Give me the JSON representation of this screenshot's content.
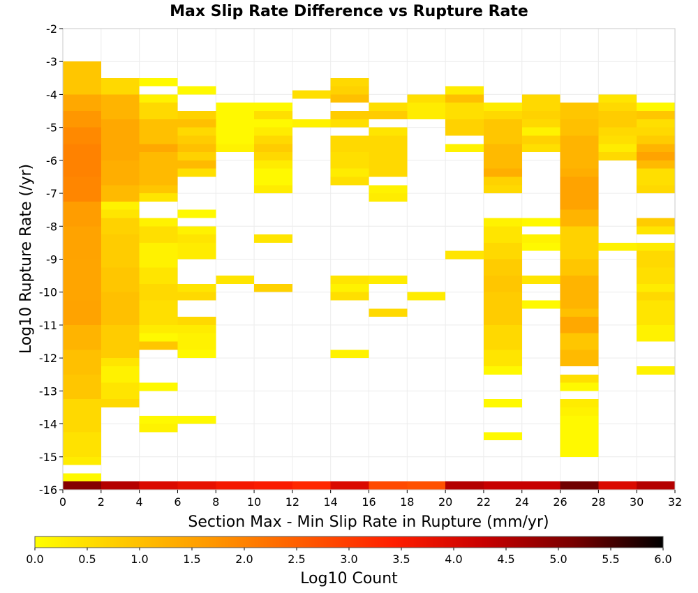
{
  "chart_data": {
    "type": "heatmap",
    "title": "Max Slip Rate Difference vs Rupture Rate",
    "xlabel": "Section Max - Min Slip Rate in Rupture (mm/yr)",
    "ylabel": "Log10 Rupture Rate (/yr)",
    "xlim": [
      0,
      32
    ],
    "ylim": [
      -16,
      -2
    ],
    "x_ticks": [
      "0",
      "2",
      "4",
      "6",
      "8",
      "10",
      "12",
      "14",
      "16",
      "18",
      "20",
      "22",
      "24",
      "26",
      "28",
      "30",
      "32"
    ],
    "y_ticks": [
      "-2",
      "-3",
      "-4",
      "-5",
      "-6",
      "-7",
      "-8",
      "-9",
      "-10",
      "-11",
      "-12",
      "-13",
      "-14",
      "-15",
      "-16"
    ],
    "cell_width": 2,
    "cell_height": 0.25,
    "grid": true,
    "colorbar": {
      "label": "Log10 Count",
      "min": 0,
      "max": 6,
      "ticks": [
        "0.0",
        "0.5",
        "1.0",
        "1.5",
        "2.0",
        "2.5",
        "3.0",
        "3.5",
        "4.0",
        "4.5",
        "5.0",
        "5.5",
        "6.0"
      ],
      "colors": [
        "#ffff00",
        "#ffc800",
        "#ff9600",
        "#ff5a00",
        "#ff1e00",
        "#c80000",
        "#780000",
        "#000000"
      ],
      "placement": "bottom"
    },
    "columns": [
      {
        "x": 0,
        "cells": [
          [
            -3.0,
            -4.0,
            0.9
          ],
          [
            -4.0,
            -4.5,
            1.4
          ],
          [
            -4.5,
            -5.0,
            1.7
          ],
          [
            -5.0,
            -5.5,
            1.9
          ],
          [
            -5.5,
            -6.5,
            2.0
          ],
          [
            -6.5,
            -7.25,
            1.95
          ],
          [
            -7.25,
            -8.0,
            1.6
          ],
          [
            -8.0,
            -9.0,
            1.5
          ],
          [
            -9.0,
            -10.25,
            1.45
          ],
          [
            -10.25,
            -11.0,
            1.5
          ],
          [
            -11.0,
            -11.75,
            1.2
          ],
          [
            -11.75,
            -12.5,
            1.0
          ],
          [
            -12.5,
            -13.25,
            0.9
          ],
          [
            -13.25,
            -14.25,
            0.6
          ],
          [
            -14.25,
            -15.0,
            0.45
          ],
          [
            -15.0,
            -15.25,
            0.3
          ],
          [
            -15.5,
            -15.75,
            0.1
          ],
          [
            -15.75,
            -16.0,
            5.0
          ]
        ]
      },
      {
        "x": 2,
        "cells": [
          [
            -3.5,
            -4.0,
            0.6
          ],
          [
            -4.0,
            -4.75,
            1.2
          ],
          [
            -4.75,
            -6.0,
            1.4
          ],
          [
            -6.0,
            -6.75,
            1.3
          ],
          [
            -6.75,
            -7.25,
            1.1
          ],
          [
            -7.25,
            -7.5,
            0.2
          ],
          [
            -7.5,
            -7.75,
            0.4
          ],
          [
            -7.75,
            -8.25,
            0.7
          ],
          [
            -8.25,
            -9.25,
            0.8
          ],
          [
            -9.25,
            -10.0,
            0.9
          ],
          [
            -10.0,
            -11.0,
            1.0
          ],
          [
            -11.0,
            -12.0,
            0.8
          ],
          [
            -12.0,
            -12.25,
            0.4
          ],
          [
            -12.25,
            -12.75,
            0.2
          ],
          [
            -12.75,
            -13.25,
            0.4
          ],
          [
            -13.25,
            -13.5,
            0.6
          ],
          [
            -15.75,
            -16.0,
            4.5
          ]
        ]
      },
      {
        "x": 4,
        "cells": [
          [
            -3.5,
            -3.75,
            0.1
          ],
          [
            -4.0,
            -4.25,
            0.2
          ],
          [
            -4.25,
            -4.75,
            0.6
          ],
          [
            -4.75,
            -5.5,
            1.0
          ],
          [
            -5.5,
            -5.75,
            1.4
          ],
          [
            -5.75,
            -6.75,
            1.1
          ],
          [
            -6.75,
            -7.0,
            0.9
          ],
          [
            -7.0,
            -7.25,
            0.4
          ],
          [
            -7.75,
            -8.0,
            0.2
          ],
          [
            -8.0,
            -8.5,
            0.5
          ],
          [
            -8.5,
            -9.25,
            0.2
          ],
          [
            -9.25,
            -9.75,
            0.4
          ],
          [
            -9.75,
            -10.25,
            0.6
          ],
          [
            -10.25,
            -11.0,
            0.5
          ],
          [
            -11.0,
            -11.25,
            0.3
          ],
          [
            -11.25,
            -11.5,
            0.1
          ],
          [
            -11.5,
            -11.75,
            0.9
          ],
          [
            -12.75,
            -13.0,
            0.1
          ],
          [
            -13.75,
            -14.0,
            0.1
          ],
          [
            -14.0,
            -14.25,
            0.2
          ],
          [
            -15.75,
            -16.0,
            4.0
          ]
        ]
      },
      {
        "x": 6,
        "cells": [
          [
            -3.75,
            -4.0,
            0.1
          ],
          [
            -4.5,
            -4.75,
            0.7
          ],
          [
            -4.75,
            -5.0,
            1.0
          ],
          [
            -5.0,
            -5.25,
            0.6
          ],
          [
            -5.25,
            -5.5,
            0.8
          ],
          [
            -5.5,
            -5.75,
            1.0
          ],
          [
            -5.75,
            -6.0,
            0.7
          ],
          [
            -6.0,
            -6.25,
            1.1
          ],
          [
            -6.25,
            -6.5,
            0.5
          ],
          [
            -7.5,
            -7.75,
            0.1
          ],
          [
            -8.0,
            -8.25,
            0.2
          ],
          [
            -8.25,
            -8.5,
            0.4
          ],
          [
            -8.5,
            -9.0,
            0.3
          ],
          [
            -9.75,
            -10.0,
            0.4
          ],
          [
            -10.0,
            -10.25,
            0.6
          ],
          [
            -10.75,
            -11.0,
            0.6
          ],
          [
            -11.0,
            -11.25,
            0.3
          ],
          [
            -11.25,
            -11.75,
            0.2
          ],
          [
            -11.75,
            -12.0,
            0.1
          ],
          [
            -13.75,
            -14.0,
            0.1
          ],
          [
            -15.75,
            -16.0,
            3.8
          ]
        ]
      },
      {
        "x": 8,
        "cells": [
          [
            -4.25,
            -5.5,
            0.1
          ],
          [
            -5.5,
            -5.75,
            0.2
          ],
          [
            -9.5,
            -9.75,
            0.4
          ],
          [
            -15.75,
            -16.0,
            3.6
          ]
        ]
      },
      {
        "x": 10,
        "cells": [
          [
            -4.25,
            -4.5,
            0.1
          ],
          [
            -4.5,
            -4.75,
            0.5
          ],
          [
            -4.75,
            -5.0,
            0.1
          ],
          [
            -5.0,
            -5.25,
            0.3
          ],
          [
            -5.25,
            -5.5,
            0.6
          ],
          [
            -5.5,
            -5.75,
            0.8
          ],
          [
            -5.75,
            -6.0,
            0.6
          ],
          [
            -6.0,
            -6.25,
            0.3
          ],
          [
            -6.25,
            -6.75,
            0.1
          ],
          [
            -6.75,
            -7.0,
            0.3
          ],
          [
            -8.25,
            -8.5,
            0.4
          ],
          [
            -9.75,
            -10.0,
            0.7
          ],
          [
            -15.75,
            -16.0,
            3.5
          ]
        ]
      },
      {
        "x": 12,
        "cells": [
          [
            -4.75,
            -5.0,
            0.2
          ],
          [
            -3.875,
            -4.125,
            0.5
          ],
          [
            -15.75,
            -16.0,
            3.3
          ]
        ]
      },
      {
        "x": 14,
        "cells": [
          [
            -3.5,
            -3.75,
            0.6
          ],
          [
            -3.75,
            -4.0,
            0.7
          ],
          [
            -4.0,
            -4.25,
            1.0
          ],
          [
            -4.5,
            -4.75,
            0.8
          ],
          [
            -4.75,
            -5.0,
            0.5
          ],
          [
            -5.25,
            -5.75,
            0.6
          ],
          [
            -5.75,
            -6.25,
            0.5
          ],
          [
            -6.25,
            -6.5,
            0.3
          ],
          [
            -6.5,
            -6.75,
            0.5
          ],
          [
            -9.5,
            -9.75,
            0.4
          ],
          [
            -9.75,
            -10.0,
            0.2
          ],
          [
            -10.0,
            -10.25,
            0.5
          ],
          [
            -11.75,
            -12.0,
            0.2
          ],
          [
            -15.75,
            -16.0,
            4.0
          ]
        ]
      },
      {
        "x": 16,
        "cells": [
          [
            -4.25,
            -4.5,
            0.5
          ],
          [
            -4.5,
            -4.75,
            0.8
          ],
          [
            -5.0,
            -5.25,
            0.4
          ],
          [
            -5.25,
            -6.5,
            0.6
          ],
          [
            -6.75,
            -7.0,
            0.2
          ],
          [
            -7.0,
            -7.25,
            0.3
          ],
          [
            -9.5,
            -9.75,
            0.3
          ],
          [
            -10.5,
            -10.75,
            0.6
          ],
          [
            -15.75,
            -16.0,
            2.8
          ]
        ]
      },
      {
        "x": 18,
        "cells": [
          [
            -4.0,
            -4.25,
            0.5
          ],
          [
            -4.25,
            -4.75,
            0.3
          ],
          [
            -10.0,
            -10.25,
            0.3
          ],
          [
            -15.75,
            -16.0,
            2.7
          ]
        ]
      },
      {
        "x": 20,
        "cells": [
          [
            -3.75,
            -4.0,
            0.3
          ],
          [
            -4.0,
            -4.25,
            1.0
          ],
          [
            -4.25,
            -4.75,
            0.5
          ],
          [
            -4.75,
            -5.25,
            0.7
          ],
          [
            -5.5,
            -5.75,
            0.2
          ],
          [
            -8.75,
            -9.0,
            0.4
          ],
          [
            -15.75,
            -16.0,
            4.5
          ]
        ]
      },
      {
        "x": 22,
        "cells": [
          [
            -4.25,
            -4.5,
            0.3
          ],
          [
            -4.5,
            -4.75,
            0.6
          ],
          [
            -4.75,
            -5.5,
            0.9
          ],
          [
            -5.5,
            -6.25,
            1.1
          ],
          [
            -6.25,
            -6.5,
            1.3
          ],
          [
            -6.5,
            -6.75,
            0.7
          ],
          [
            -6.75,
            -7.0,
            0.6
          ],
          [
            -7.75,
            -8.0,
            0.2
          ],
          [
            -8.0,
            -8.5,
            0.4
          ],
          [
            -8.5,
            -9.0,
            0.6
          ],
          [
            -9.0,
            -9.5,
            0.8
          ],
          [
            -9.5,
            -10.0,
            0.9
          ],
          [
            -10.0,
            -11.0,
            0.8
          ],
          [
            -11.0,
            -11.75,
            0.6
          ],
          [
            -11.75,
            -12.25,
            0.4
          ],
          [
            -12.25,
            -12.5,
            0.1
          ],
          [
            -13.25,
            -13.5,
            0.1
          ],
          [
            -14.25,
            -14.5,
            0.1
          ],
          [
            -15.75,
            -16.0,
            4.3
          ]
        ]
      },
      {
        "x": 24,
        "cells": [
          [
            -4.0,
            -4.5,
            0.6
          ],
          [
            -4.5,
            -4.75,
            0.7
          ],
          [
            -4.75,
            -5.0,
            0.6
          ],
          [
            -5.0,
            -5.25,
            0.2
          ],
          [
            -5.25,
            -5.5,
            0.7
          ],
          [
            -5.5,
            -5.75,
            0.5
          ],
          [
            -7.75,
            -8.0,
            0.1
          ],
          [
            -8.25,
            -8.5,
            0.2
          ],
          [
            -8.5,
            -8.75,
            0.1
          ],
          [
            -9.5,
            -9.75,
            0.4
          ],
          [
            -10.25,
            -10.5,
            0.1
          ],
          [
            -15.75,
            -16.0,
            4.3
          ]
        ]
      },
      {
        "x": 26,
        "cells": [
          [
            -4.25,
            -4.75,
            0.9
          ],
          [
            -4.75,
            -5.25,
            1.0
          ],
          [
            -5.25,
            -6.25,
            1.2
          ],
          [
            -6.25,
            -6.5,
            1.3
          ],
          [
            -6.5,
            -7.25,
            1.5
          ],
          [
            -7.25,
            -7.5,
            1.5
          ],
          [
            -7.5,
            -8.0,
            1.2
          ],
          [
            -8.0,
            -9.0,
            0.7
          ],
          [
            -9.0,
            -9.5,
            0.9
          ],
          [
            -9.5,
            -10.5,
            1.2
          ],
          [
            -10.5,
            -10.75,
            1.0
          ],
          [
            -10.75,
            -11.25,
            1.4
          ],
          [
            -11.25,
            -11.75,
            0.9
          ],
          [
            -11.75,
            -12.25,
            1.1
          ],
          [
            -12.5,
            -12.75,
            0.5
          ],
          [
            -12.75,
            -13.0,
            0.1
          ],
          [
            -13.25,
            -13.5,
            0.3
          ],
          [
            -13.5,
            -13.75,
            0.2
          ],
          [
            -13.75,
            -14.5,
            0.1
          ],
          [
            -14.5,
            -15.0,
            0.1
          ],
          [
            -15.75,
            -16.0,
            5.2
          ]
        ]
      },
      {
        "x": 28,
        "cells": [
          [
            -4.0,
            -4.25,
            0.4
          ],
          [
            -4.25,
            -4.5,
            0.6
          ],
          [
            -4.5,
            -5.0,
            0.8
          ],
          [
            -5.0,
            -5.25,
            0.6
          ],
          [
            -5.25,
            -5.5,
            0.5
          ],
          [
            -5.5,
            -5.75,
            0.3
          ],
          [
            -5.75,
            -6.0,
            0.6
          ],
          [
            -8.5,
            -8.75,
            0.2
          ],
          [
            -15.75,
            -16.0,
            4.0
          ]
        ]
      },
      {
        "x": 30,
        "cells": [
          [
            -4.25,
            -4.5,
            0.1
          ],
          [
            -4.5,
            -4.75,
            0.9
          ],
          [
            -4.75,
            -5.0,
            0.5
          ],
          [
            -5.0,
            -5.25,
            0.6
          ],
          [
            -5.25,
            -5.5,
            0.8
          ],
          [
            -5.5,
            -5.75,
            1.2
          ],
          [
            -5.75,
            -6.0,
            1.5
          ],
          [
            -6.0,
            -6.25,
            1.1
          ],
          [
            -6.25,
            -6.75,
            0.5
          ],
          [
            -6.75,
            -7.0,
            0.6
          ],
          [
            -7.75,
            -8.0,
            0.8
          ],
          [
            -8.0,
            -8.25,
            0.4
          ],
          [
            -8.5,
            -8.75,
            0.3
          ],
          [
            -8.75,
            -9.25,
            0.6
          ],
          [
            -9.25,
            -9.75,
            0.5
          ],
          [
            -9.75,
            -10.0,
            0.3
          ],
          [
            -10.0,
            -10.25,
            0.6
          ],
          [
            -10.25,
            -11.0,
            0.4
          ],
          [
            -11.0,
            -11.5,
            0.2
          ],
          [
            -12.25,
            -12.5,
            0.2
          ],
          [
            -15.75,
            -16.0,
            4.5
          ]
        ]
      }
    ]
  }
}
